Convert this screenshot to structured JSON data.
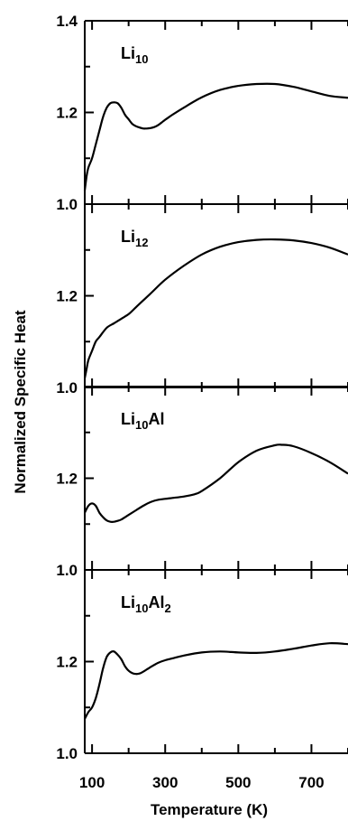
{
  "chart_data": {
    "type": "line",
    "ylabel": "Normalized Specific Heat",
    "xlabel": "Temperature (K)",
    "xlim": [
      80,
      800
    ],
    "x_ticks": [
      "100",
      "300",
      "500",
      "700"
    ],
    "y_ticks": [
      "1.0",
      "1.2",
      "1.4"
    ],
    "grid": false,
    "panels": [
      {
        "label_parts": [
          {
            "text": "Li"
          },
          {
            "text": "10",
            "sub": true
          }
        ],
        "ylim": [
          1.0,
          1.4
        ],
        "series": [
          {
            "x": [
              80,
              85,
              90,
              100,
              110,
              120,
              130,
              140,
              150,
              160,
              170,
              180,
              190,
              200,
              210,
              220,
              230,
              240,
              250,
              260,
              270,
              280,
              290,
              300,
              320,
              350,
              400,
              450,
              500,
              550,
              600,
              650,
              700,
              750,
              800
            ],
            "y": [
              1.03,
              1.06,
              1.08,
              1.1,
              1.13,
              1.16,
              1.19,
              1.21,
              1.22,
              1.222,
              1.22,
              1.21,
              1.195,
              1.185,
              1.175,
              1.17,
              1.167,
              1.165,
              1.165,
              1.166,
              1.168,
              1.172,
              1.178,
              1.184,
              1.195,
              1.21,
              1.233,
              1.249,
              1.258,
              1.262,
              1.262,
              1.256,
              1.246,
              1.236,
              1.232
            ]
          }
        ]
      },
      {
        "label_parts": [
          {
            "text": "Li"
          },
          {
            "text": "12",
            "sub": true
          }
        ],
        "ylim": [
          1.0,
          1.4
        ],
        "series": [
          {
            "x": [
              80,
              85,
              90,
              100,
              110,
              120,
              140,
              160,
              180,
              200,
              220,
              240,
              260,
              300,
              350,
              400,
              450,
              500,
              550,
              600,
              650,
              700,
              750,
              800
            ],
            "y": [
              1.02,
              1.04,
              1.06,
              1.08,
              1.1,
              1.11,
              1.13,
              1.14,
              1.15,
              1.16,
              1.175,
              1.19,
              1.205,
              1.235,
              1.265,
              1.29,
              1.307,
              1.317,
              1.322,
              1.323,
              1.321,
              1.315,
              1.305,
              1.29
            ]
          }
        ]
      },
      {
        "label_parts": [
          {
            "text": "Li"
          },
          {
            "text": "10",
            "sub": true
          },
          {
            "text": "Al"
          }
        ],
        "ylim": [
          1.0,
          1.4
        ],
        "series": [
          {
            "x": [
              80,
              90,
              100,
              110,
              120,
              130,
              140,
              150,
              160,
              170,
              180,
              200,
              220,
              240,
              260,
              280,
              300,
              320,
              350,
              380,
              400,
              450,
              500,
              550,
              600,
              620,
              650,
              700,
              750,
              800
            ],
            "y": [
              1.125,
              1.14,
              1.145,
              1.14,
              1.125,
              1.115,
              1.108,
              1.105,
              1.105,
              1.107,
              1.11,
              1.12,
              1.13,
              1.14,
              1.148,
              1.153,
              1.155,
              1.157,
              1.16,
              1.165,
              1.172,
              1.2,
              1.235,
              1.26,
              1.272,
              1.273,
              1.27,
              1.255,
              1.235,
              1.21
            ]
          }
        ]
      },
      {
        "label_parts": [
          {
            "text": "Li"
          },
          {
            "text": "10",
            "sub": true
          },
          {
            "text": "Al"
          },
          {
            "text": "2",
            "sub": true
          }
        ],
        "ylim": [
          1.0,
          1.4
        ],
        "series": [
          {
            "x": [
              80,
              90,
              100,
              110,
              120,
              130,
              140,
              150,
              160,
              170,
              180,
              190,
              200,
              210,
              220,
              230,
              240,
              250,
              260,
              280,
              300,
              320,
              350,
              400,
              450,
              500,
              550,
              600,
              650,
              700,
              750,
              800
            ],
            "y": [
              1.075,
              1.09,
              1.1,
              1.12,
              1.15,
              1.185,
              1.21,
              1.22,
              1.222,
              1.215,
              1.205,
              1.19,
              1.18,
              1.175,
              1.173,
              1.174,
              1.178,
              1.183,
              1.188,
              1.197,
              1.203,
              1.207,
              1.213,
              1.22,
              1.222,
              1.22,
              1.219,
              1.222,
              1.228,
              1.235,
              1.24,
              1.238
            ]
          }
        ]
      }
    ]
  }
}
